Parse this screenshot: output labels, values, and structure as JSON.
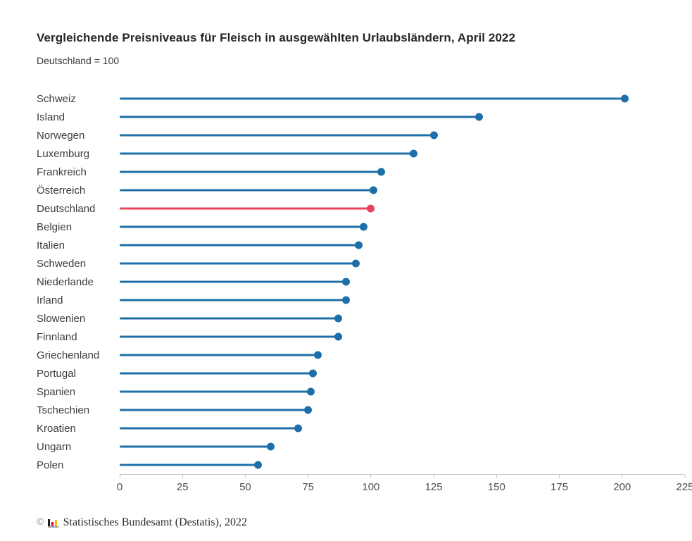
{
  "chart_data": {
    "type": "bar",
    "variant": "lollipop",
    "orientation": "horizontal",
    "title": "Vergleichende Preisniveaus für Fleisch in ausgewählten Urlaubsländern, April 2022",
    "subtitle": "Deutschland = 100",
    "xlabel": "",
    "ylabel": "",
    "categories": [
      "Schweiz",
      "Island",
      "Norwegen",
      "Luxemburg",
      "Frankreich",
      "Österreich",
      "Deutschland",
      "Belgien",
      "Italien",
      "Schweden",
      "Niederlande",
      "Irland",
      "Slowenien",
      "Finnland",
      "Griechenland",
      "Portugal",
      "Spanien",
      "Tschechien",
      "Kroatien",
      "Ungarn",
      "Polen"
    ],
    "values": [
      201,
      143,
      125,
      117,
      104,
      101,
      100,
      97,
      95,
      94,
      90,
      90,
      87,
      87,
      79,
      77,
      76,
      75,
      71,
      60,
      55
    ],
    "highlight_category": "Deutschland",
    "colors": {
      "default": "#1E6FA8",
      "highlight": "#E8435C"
    },
    "xlim": [
      0,
      225
    ],
    "xticks": [
      0,
      25,
      50,
      75,
      100,
      125,
      150,
      175,
      200,
      225
    ],
    "grid": false,
    "legend": false
  },
  "footer": {
    "copyright": "©",
    "source": "Statistisches Bundesamt (Destatis), 2022",
    "logo_colors": {
      "black": "#1D1D1B",
      "red": "#D6112E",
      "gold": "#F2BC00"
    }
  }
}
